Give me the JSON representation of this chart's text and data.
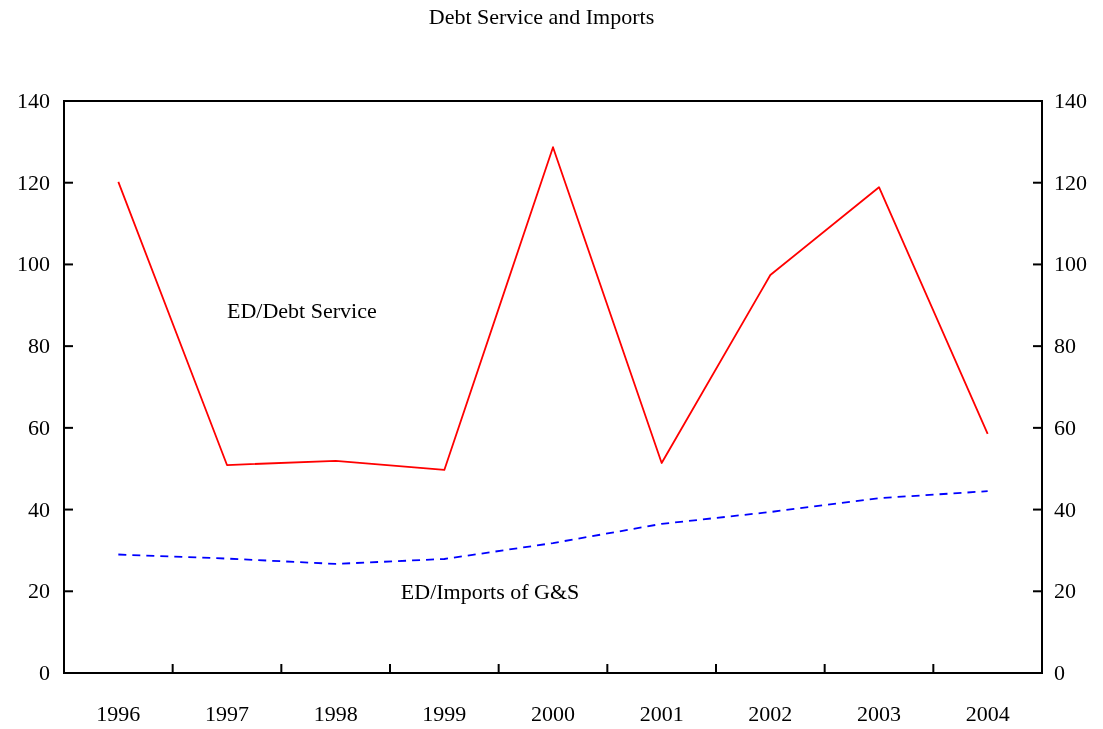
{
  "chart_data": {
    "type": "line",
    "title": "Debt Service and Imports",
    "categories": [
      "1996",
      "1997",
      "1998",
      "1999",
      "2000",
      "2001",
      "2002",
      "2003",
      "2004"
    ],
    "series": [
      {
        "name": "ED/Debt Service",
        "color": "#ff0000",
        "line_style": "solid",
        "values": [
          120.2,
          50.9,
          51.9,
          49.7,
          128.7,
          51.4,
          97.4,
          118.9,
          58.5
        ]
      },
      {
        "name": "ED/Imports of G&S",
        "color": "#0000ff",
        "line_style": "dashed",
        "values": [
          29,
          28,
          26.7,
          27.9,
          31.8,
          36.5,
          39.4,
          42.8,
          44.5
        ]
      }
    ],
    "ylim": [
      0,
      140
    ],
    "yticks": [
      0,
      20,
      40,
      60,
      80,
      100,
      120,
      140
    ],
    "y2lim": [
      0,
      140
    ],
    "y2ticks": [
      0,
      20,
      40,
      60,
      80,
      100,
      120,
      140
    ],
    "grid": false,
    "marker": "none"
  }
}
